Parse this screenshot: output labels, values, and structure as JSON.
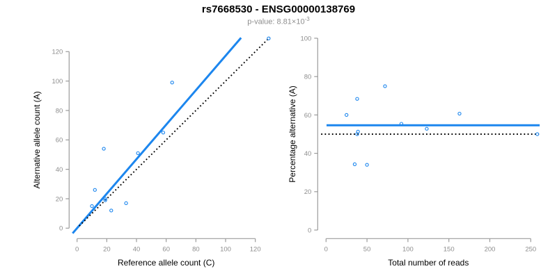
{
  "header": {
    "title": "rs7668530 - ENSG00000138769",
    "subtitle_prefix": "p-value: 8.81×10",
    "subtitle_exponent": "-3"
  },
  "colors": {
    "blue": "#1C86EE",
    "black": "#000000",
    "axis_line": "#9b9b9b",
    "tick_label": "#8e8e8e",
    "axis_title": "#000000",
    "subtitle_gray": "#8e8e8e"
  },
  "chart_data": [
    {
      "type": "scatter",
      "name": "allele-counts-scatter",
      "xlabel": "Reference allele count (C)",
      "ylabel": "Alternative allele count (A)",
      "xticks": [
        0,
        20,
        40,
        60,
        80,
        100,
        120
      ],
      "yticks": [
        0,
        20,
        40,
        60,
        80,
        100,
        120
      ],
      "xlim": [
        -5,
        135
      ],
      "ylim": [
        -5,
        135
      ],
      "grid": false,
      "legend": null,
      "points": [
        [
          10,
          15
        ],
        [
          12,
          26
        ],
        [
          18,
          54
        ],
        [
          19,
          19
        ],
        [
          19,
          20
        ],
        [
          23,
          12
        ],
        [
          33,
          17
        ],
        [
          41,
          51
        ],
        [
          58,
          65
        ],
        [
          64,
          99
        ],
        [
          129,
          129
        ]
      ],
      "lines": [
        {
          "name": "fitted-allelic-ratio-line",
          "style": "solid",
          "color_key": "blue",
          "width": 3,
          "x1": -3,
          "y1": -3.5,
          "x2": 110.4,
          "y2": 129.4
        },
        {
          "name": "identity-line",
          "style": "dotted",
          "color_key": "black",
          "width": 1.9,
          "x1": 1.5,
          "y1": 1.5,
          "x2": 129.8,
          "y2": 129.8
        }
      ]
    },
    {
      "type": "scatter",
      "name": "percentage-vs-reads-scatter",
      "xlabel": "Total number of reads",
      "ylabel": "Percentage alternative (A)",
      "xticks": [
        0,
        50,
        100,
        150,
        200,
        250
      ],
      "yticks": [
        0,
        20,
        40,
        60,
        80,
        100
      ],
      "xlim": [
        -10,
        268
      ],
      "ylim": [
        0,
        100
      ],
      "grid": false,
      "legend": null,
      "points": [
        [
          25,
          60
        ],
        [
          35,
          34.3
        ],
        [
          38,
          50
        ],
        [
          38,
          68.4
        ],
        [
          39,
          51.3
        ],
        [
          50,
          34
        ],
        [
          72,
          75
        ],
        [
          92,
          55.4
        ],
        [
          123,
          52.8
        ],
        [
          163,
          60.7
        ],
        [
          258,
          50
        ]
      ],
      "lines": [
        {
          "name": "mean-percentage-line",
          "style": "solid",
          "color_key": "blue",
          "width": 3,
          "x1": 0.6,
          "y1": 54.6,
          "x2": 260.9,
          "y2": 54.6
        },
        {
          "name": "expected-50-percent-line",
          "style": "dotted",
          "color_key": "black",
          "width": 1.9,
          "x1": -6,
          "y1": 50,
          "x2": 260,
          "y2": 50
        }
      ]
    }
  ]
}
